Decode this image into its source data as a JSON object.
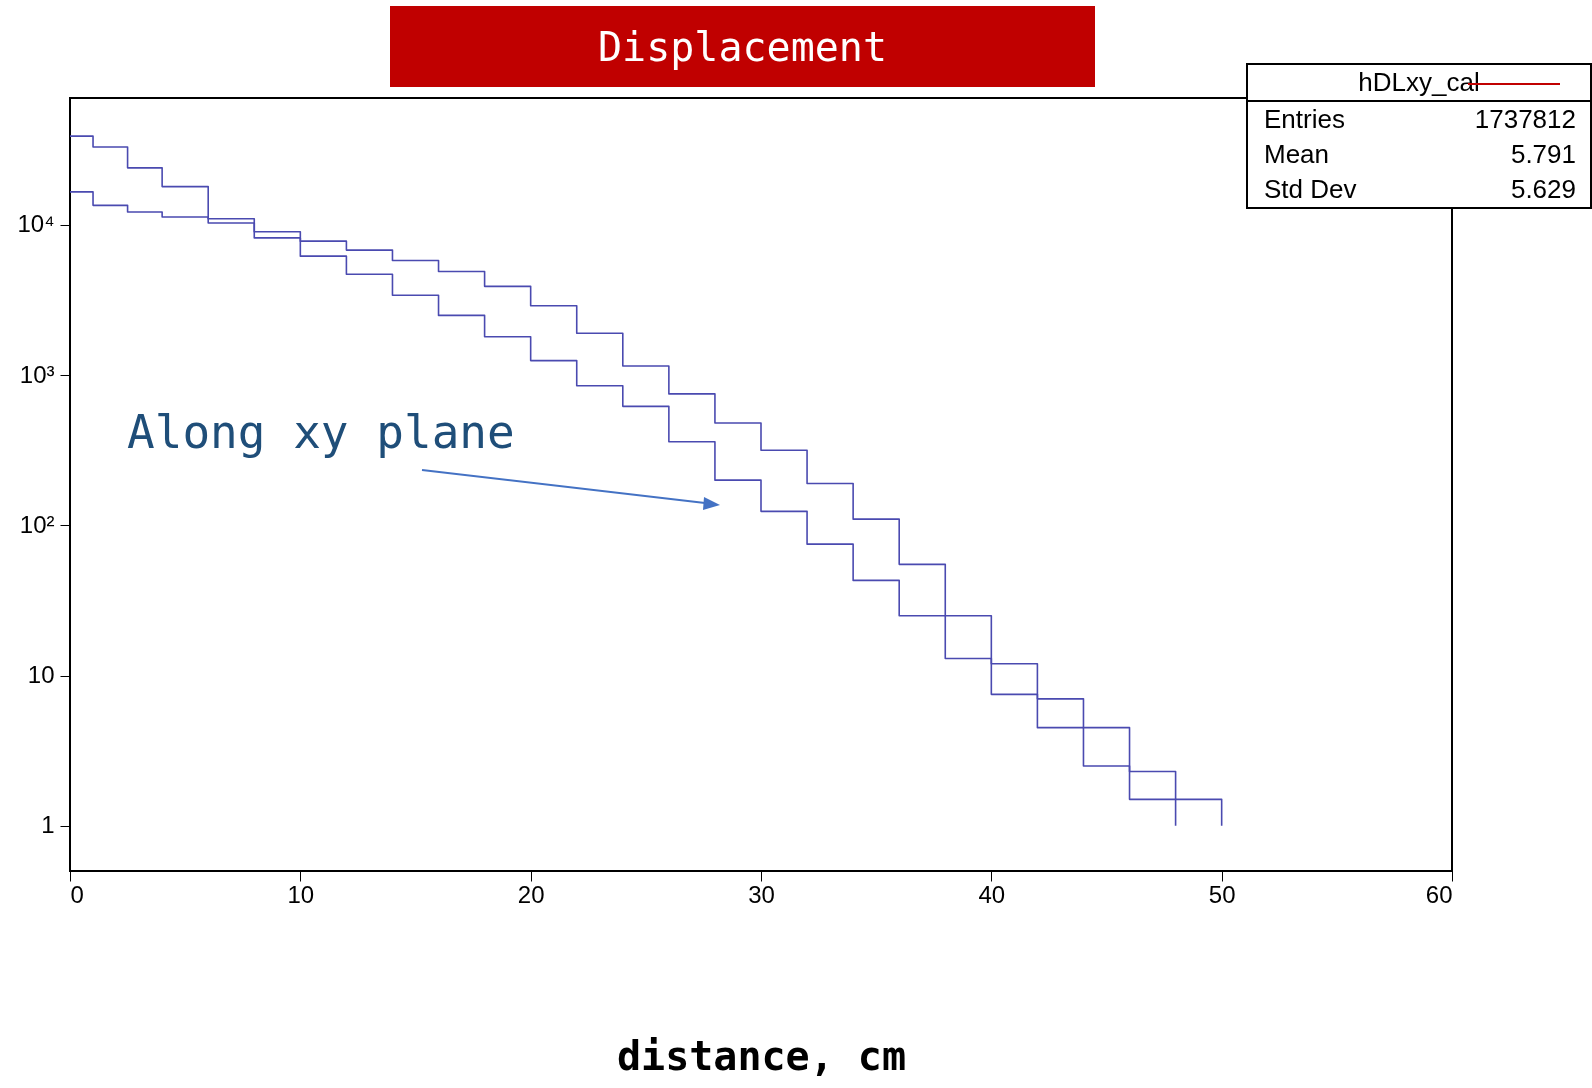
{
  "chart_data": {
    "type": "step",
    "title": "Displacement",
    "xlabel": "distance, cm",
    "x": [
      0,
      1,
      2.5,
      4,
      6,
      8,
      10,
      12,
      14,
      16,
      18,
      20,
      22,
      24,
      26,
      28,
      30,
      32,
      34,
      36,
      38,
      40,
      42,
      44,
      46,
      48,
      50
    ],
    "series": [
      {
        "color": "#4a4ab0",
        "values": [
          39000,
          33000,
          24000,
          18000,
          11000,
          8200,
          6200,
          4700,
          3400,
          2500,
          1800,
          1250,
          850,
          620,
          360,
          200,
          124,
          75,
          43,
          25,
          13,
          7.5,
          4.5,
          2.5,
          1.5,
          1,
          null
        ]
      },
      {
        "color": "#4a4ab0",
        "values": [
          16600,
          13500,
          12200,
          11300,
          10300,
          9000,
          7800,
          6800,
          5800,
          4900,
          3900,
          2900,
          1900,
          1150,
          750,
          480,
          316,
          190,
          110,
          55,
          25,
          12,
          7,
          4.5,
          2.3,
          1.5,
          1
        ]
      }
    ],
    "log": "y",
    "xlim": [
      0,
      60
    ],
    "xticks": [
      0,
      10,
      20,
      30,
      40,
      50,
      60
    ],
    "ylim": [
      0.5,
      70000
    ],
    "yticks": [
      1,
      10,
      {
        "value": 100,
        "label": "10²"
      },
      {
        "value": 1000,
        "label": "10³"
      },
      {
        "value": 10000,
        "label": "10⁴"
      }
    ],
    "grid": false,
    "marker": "none",
    "annotations": [
      "hDLxy_cal",
      "Entries",
      "1737812",
      "Mean",
      "5.791",
      "Std Dev",
      "5.629",
      "Along xy plane"
    ]
  }
}
